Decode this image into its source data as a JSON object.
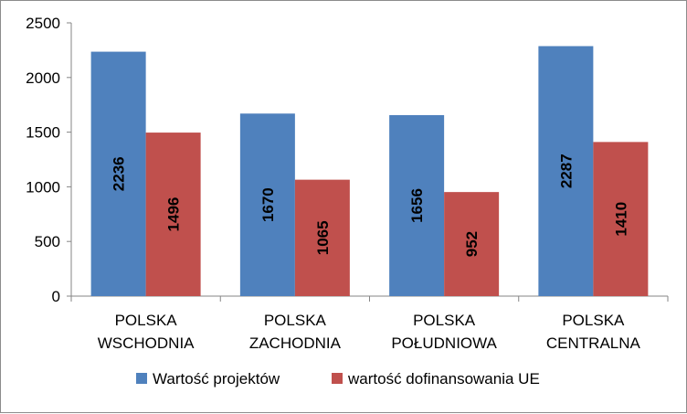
{
  "chart_data": {
    "type": "bar",
    "categories": [
      [
        "POLSKA",
        "WSCHODNIA"
      ],
      [
        "POLSKA",
        "ZACHODNIA"
      ],
      [
        "POLSKA",
        "POŁUDNIOWA"
      ],
      [
        "POLSKA",
        "CENTRALNA"
      ]
    ],
    "series": [
      {
        "name": "Wartość projektów",
        "values": [
          2236,
          1670,
          1656,
          2287
        ],
        "color": "#4f81bd"
      },
      {
        "name": "wartość dofinansowania UE",
        "values": [
          1496,
          1065,
          952,
          1410
        ],
        "color": "#c0504d"
      }
    ],
    "ylim": [
      0,
      2500
    ],
    "yticks": [
      0,
      500,
      1000,
      1500,
      2000,
      2500
    ],
    "grid": false,
    "legend": "bottom",
    "data_labels": "rotated-inside"
  }
}
